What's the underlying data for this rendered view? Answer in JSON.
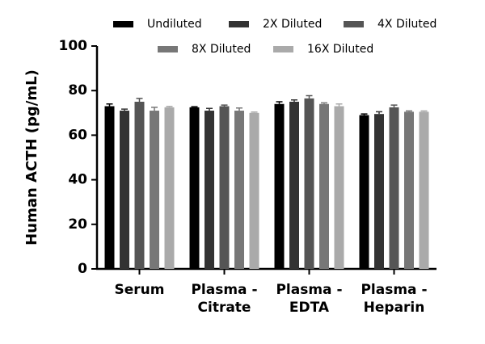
{
  "chart_data": {
    "type": "bar",
    "y_label": "Human ACTH (pg/mL)",
    "categories": [
      "Serum",
      "Plasma -\nCitrate",
      "Plasma -\nEDTA",
      "Plasma -\nHeparin"
    ],
    "series": [
      {
        "name": "Undiluted",
        "color": "#000000",
        "values": [
          73,
          72.5,
          74,
          69
        ],
        "errors": [
          1,
          0.3,
          1,
          0.5
        ]
      },
      {
        "name": "2X Diluted",
        "color": "#333333",
        "values": [
          71,
          71,
          75,
          69.5
        ],
        "errors": [
          0.7,
          1,
          0.8,
          1
        ]
      },
      {
        "name": "4X Diluted",
        "color": "#555555",
        "values": [
          75,
          73,
          76.5,
          72.5
        ],
        "errors": [
          1.5,
          0.5,
          1.2,
          1
        ]
      },
      {
        "name": "8X Diluted",
        "color": "#777777",
        "values": [
          71,
          71,
          74,
          70.5
        ],
        "errors": [
          1.5,
          1.2,
          0.5,
          0.4
        ]
      },
      {
        "name": "16X Diluted",
        "color": "#aaaaaa",
        "values": [
          72.5,
          70,
          73,
          70.5
        ],
        "errors": [
          0.4,
          0.4,
          1,
          0.4
        ]
      }
    ],
    "ylim": [
      0,
      100
    ],
    "yticks": [
      0,
      20,
      40,
      60,
      80,
      100
    ],
    "grid": false
  }
}
